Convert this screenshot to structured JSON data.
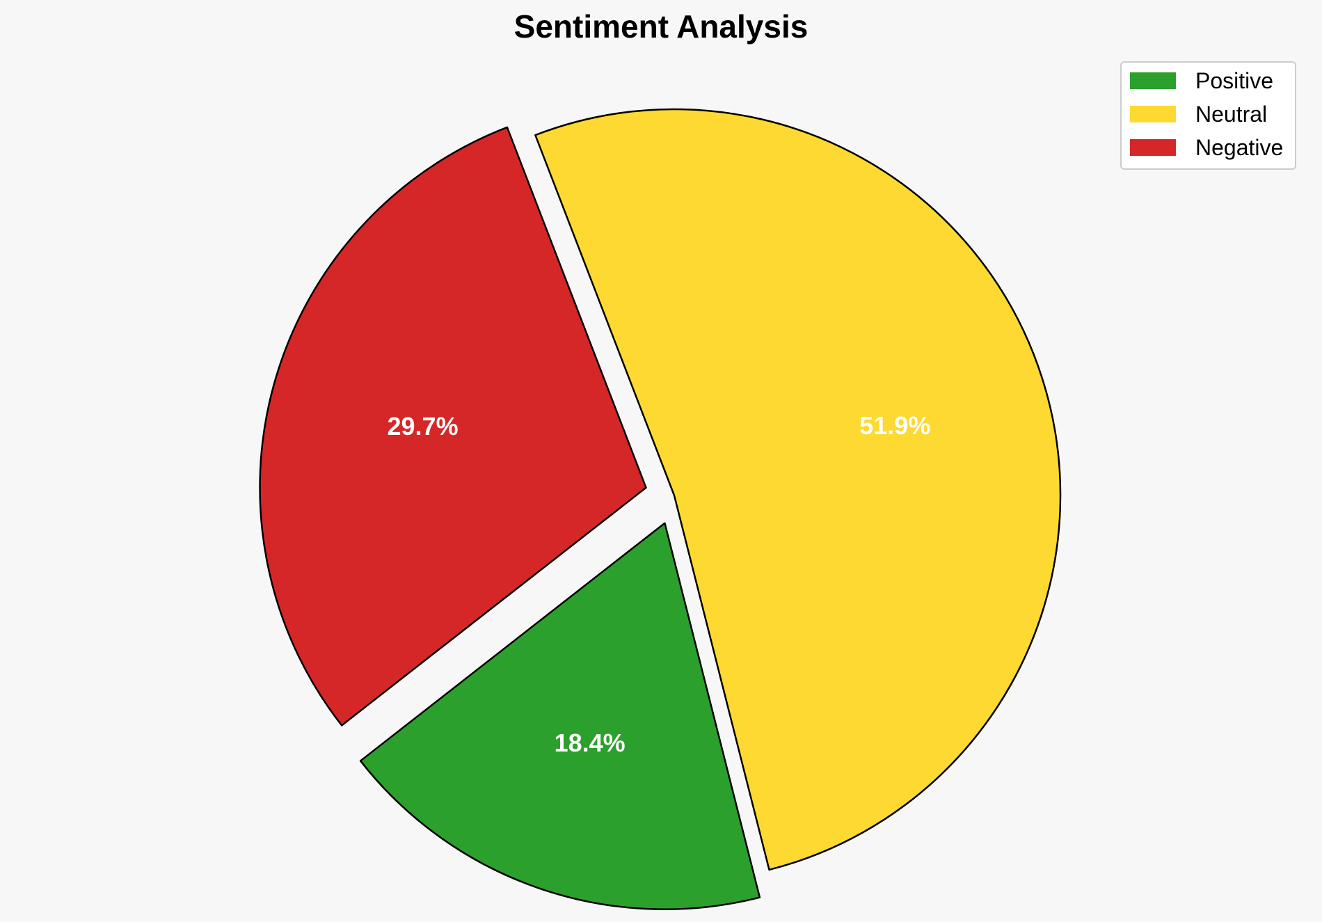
{
  "chart_data": {
    "type": "pie",
    "title": "Sentiment Analysis",
    "categories": [
      "Positive",
      "Neutral",
      "Negative"
    ],
    "values": [
      18.4,
      51.9,
      29.7
    ],
    "labels": [
      "18.4%",
      "51.9%",
      "29.7%"
    ],
    "colors": [
      "#2ca02c",
      "#fdd931",
      "#d62728"
    ],
    "exploded": [
      true,
      false,
      true
    ],
    "legend_position": "top-right",
    "edge_color": "#000000"
  }
}
